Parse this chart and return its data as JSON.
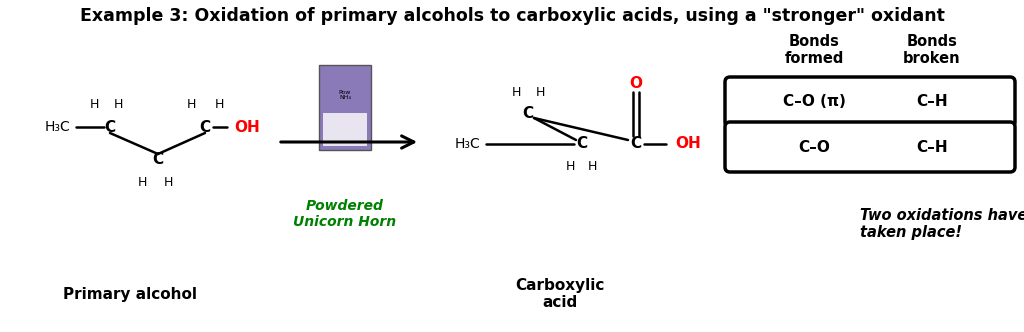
{
  "title": "Example 3: Oxidation of primary alcohols to carboxylic acids, using a \"stronger\" oxidant",
  "title_fontsize": 12.5,
  "title_fontweight": "bold",
  "bg_color": "#ffffff",
  "black": "#000000",
  "red": "#ff0000",
  "green": "#008000",
  "primary_alcohol_label": "Primary alcohol",
  "carboxylic_acid_label": "Carboxylic\nacid",
  "reagent_label": "Powdered\nUnicorn Horn",
  "two_oxidations_label": "Two oxidations have\ntaken place!",
  "bonds_formed_label": "Bonds\nformed",
  "bonds_broken_label": "Bonds\nbroken",
  "row1_formed": "C–O (π)",
  "row1_broken": "C–H",
  "row2_formed": "C–O",
  "row2_broken": "C–H"
}
